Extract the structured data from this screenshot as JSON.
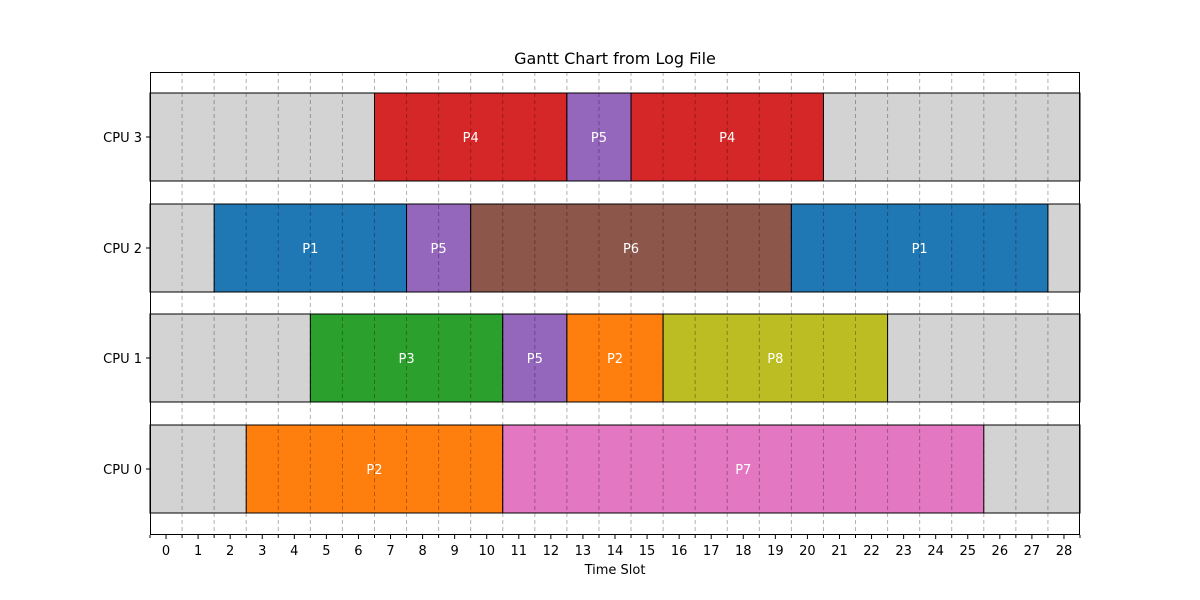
{
  "chart_data": {
    "type": "gantt",
    "title": "Gantt Chart from Log File",
    "xlabel": "Time Slot",
    "ylabel": "",
    "xlim": [
      -0.5,
      28.5
    ],
    "x_ticks": [
      "0",
      "1",
      "2",
      "3",
      "4",
      "5",
      "6",
      "7",
      "8",
      "9",
      "10",
      "11",
      "12",
      "13",
      "14",
      "15",
      "16",
      "17",
      "18",
      "19",
      "20",
      "21",
      "22",
      "23",
      "24",
      "25",
      "26",
      "27",
      "28"
    ],
    "rows": [
      "CPU 0",
      "CPU 1",
      "CPU 2",
      "CPU 3"
    ],
    "grid": "vertical dashed at half slots",
    "idle_color": "#d3d3d3",
    "process_colors": {
      "P1": "#1f77b4",
      "P2": "#ff7f0e",
      "P3": "#2ca02c",
      "P4": "#d62728",
      "P5": "#9467bd",
      "P6": "#8c564b",
      "P7": "#e377c2",
      "P8": "#bcbd22"
    },
    "tasks": [
      {
        "row": "CPU 0",
        "label": "P2",
        "start": 2.5,
        "end": 10.5
      },
      {
        "row": "CPU 0",
        "label": "P7",
        "start": 10.5,
        "end": 25.5
      },
      {
        "row": "CPU 1",
        "label": "P3",
        "start": 4.5,
        "end": 10.5
      },
      {
        "row": "CPU 1",
        "label": "P5",
        "start": 10.5,
        "end": 12.5
      },
      {
        "row": "CPU 1",
        "label": "P2",
        "start": 12.5,
        "end": 15.5
      },
      {
        "row": "CPU 1",
        "label": "P8",
        "start": 15.5,
        "end": 22.5
      },
      {
        "row": "CPU 2",
        "label": "P1",
        "start": 1.5,
        "end": 7.5
      },
      {
        "row": "CPU 2",
        "label": "P5",
        "start": 7.5,
        "end": 9.5
      },
      {
        "row": "CPU 2",
        "label": "P6",
        "start": 9.5,
        "end": 19.5
      },
      {
        "row": "CPU 2",
        "label": "P1",
        "start": 19.5,
        "end": 27.5
      },
      {
        "row": "CPU 3",
        "label": "P4",
        "start": 6.5,
        "end": 12.5
      },
      {
        "row": "CPU 3",
        "label": "P5",
        "start": 12.5,
        "end": 14.5
      },
      {
        "row": "CPU 3",
        "label": "P4",
        "start": 14.5,
        "end": 20.5
      }
    ]
  }
}
